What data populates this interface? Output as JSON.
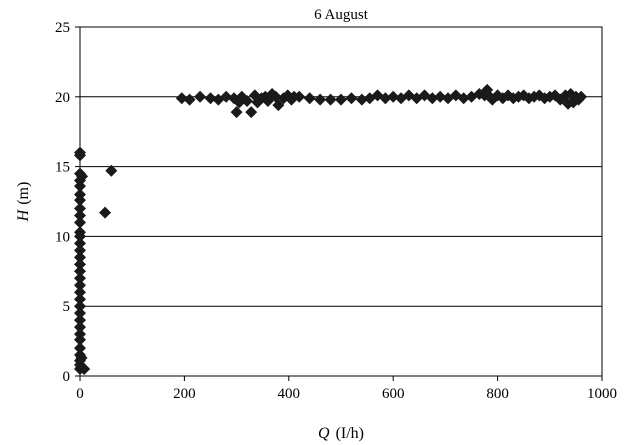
{
  "chart_data": {
    "type": "scatter",
    "title": "6 August",
    "xlabel_var": "Q",
    "xlabel_unit": "(I/h)",
    "ylabel_var": "H",
    "ylabel_unit": "(m)",
    "xlim": [
      0,
      1000
    ],
    "ylim": [
      0,
      25
    ],
    "xticks": [
      0,
      200,
      400,
      600,
      800,
      1000
    ],
    "yticks": [
      0,
      5,
      10,
      15,
      20,
      25
    ],
    "grid": "horizontal",
    "legend": "none",
    "marker": "diamond",
    "color": "#1a1a1a",
    "series": [
      {
        "points": [
          [
            0,
            0.5
          ],
          [
            0,
            0.8
          ],
          [
            0,
            1.1
          ],
          [
            0,
            1.5
          ],
          [
            0,
            2.0
          ],
          [
            0,
            2.6
          ],
          [
            0,
            3.0
          ],
          [
            0,
            3.5
          ],
          [
            0,
            4.0
          ],
          [
            0,
            4.5
          ],
          [
            0,
            5.0
          ],
          [
            0,
            5.5
          ],
          [
            0,
            6.0
          ],
          [
            0,
            6.5
          ],
          [
            0,
            7.0
          ],
          [
            0,
            7.5
          ],
          [
            0,
            8.0
          ],
          [
            0,
            8.5
          ],
          [
            0,
            9.0
          ],
          [
            0,
            9.5
          ],
          [
            0,
            10.0
          ],
          [
            0,
            10.3
          ],
          [
            0,
            11.0
          ],
          [
            0,
            11.5
          ],
          [
            0,
            12.0
          ],
          [
            0,
            12.6
          ],
          [
            0,
            13.0
          ],
          [
            0,
            13.6
          ],
          [
            0,
            14.0
          ],
          [
            0,
            14.5
          ],
          [
            0,
            15.8
          ],
          [
            0,
            16.0
          ],
          [
            2,
            0.6
          ],
          [
            3,
            1.3
          ],
          [
            4,
            14.3
          ],
          [
            5,
            0.6
          ],
          [
            8,
            0.5
          ],
          [
            48,
            11.7
          ],
          [
            60,
            14.7
          ],
          [
            195,
            19.9
          ],
          [
            210,
            19.8
          ],
          [
            230,
            20.0
          ],
          [
            250,
            19.9
          ],
          [
            265,
            19.8
          ],
          [
            280,
            20.0
          ],
          [
            295,
            19.9
          ],
          [
            300,
            18.9
          ],
          [
            305,
            19.6
          ],
          [
            310,
            20.0
          ],
          [
            320,
            19.7
          ],
          [
            328,
            18.9
          ],
          [
            335,
            20.1
          ],
          [
            340,
            19.6
          ],
          [
            348,
            19.9
          ],
          [
            355,
            20.0
          ],
          [
            360,
            19.7
          ],
          [
            368,
            20.2
          ],
          [
            375,
            20.0
          ],
          [
            380,
            19.4
          ],
          [
            390,
            19.9
          ],
          [
            398,
            20.1
          ],
          [
            405,
            19.8
          ],
          [
            410,
            20.0
          ],
          [
            420,
            20.0
          ],
          [
            440,
            19.9
          ],
          [
            460,
            19.8
          ],
          [
            480,
            19.8
          ],
          [
            500,
            19.8
          ],
          [
            520,
            19.9
          ],
          [
            540,
            19.8
          ],
          [
            555,
            19.9
          ],
          [
            570,
            20.1
          ],
          [
            585,
            19.9
          ],
          [
            600,
            20.0
          ],
          [
            615,
            19.9
          ],
          [
            630,
            20.1
          ],
          [
            645,
            19.9
          ],
          [
            660,
            20.1
          ],
          [
            675,
            19.9
          ],
          [
            690,
            20.0
          ],
          [
            705,
            19.9
          ],
          [
            720,
            20.1
          ],
          [
            735,
            19.9
          ],
          [
            750,
            20.0
          ],
          [
            765,
            20.2
          ],
          [
            775,
            20.1
          ],
          [
            780,
            20.5
          ],
          [
            785,
            20.0
          ],
          [
            790,
            19.8
          ],
          [
            800,
            20.1
          ],
          [
            810,
            19.9
          ],
          [
            820,
            20.1
          ],
          [
            830,
            19.9
          ],
          [
            840,
            20.0
          ],
          [
            850,
            20.1
          ],
          [
            860,
            19.9
          ],
          [
            870,
            20.0
          ],
          [
            880,
            20.1
          ],
          [
            890,
            19.9
          ],
          [
            900,
            20.0
          ],
          [
            910,
            20.1
          ],
          [
            920,
            19.8
          ],
          [
            930,
            20.1
          ],
          [
            935,
            19.5
          ],
          [
            940,
            20.2
          ],
          [
            945,
            19.6
          ],
          [
            950,
            20.0
          ],
          [
            955,
            19.8
          ],
          [
            960,
            20.0
          ]
        ]
      }
    ]
  }
}
